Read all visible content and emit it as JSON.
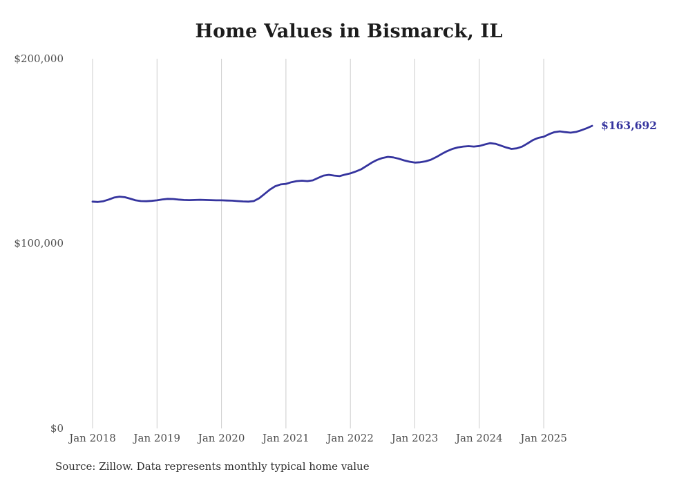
{
  "title": "Home Values in Bismarck, IL",
  "footer": {
    "source": "Source: Zillow. Data represents monthly typical home value"
  },
  "chart_data": {
    "type": "line",
    "title": "Home Values in Bismarck, IL",
    "series_name": "Typical home value",
    "x_start": "2018-01",
    "x_end": "2025-10",
    "x_frequency": "monthly",
    "x_tick_labels": [
      "Jan 2018",
      "Jan 2019",
      "Jan 2020",
      "Jan 2021",
      "Jan 2022",
      "Jan 2023",
      "Jan 2024",
      "Jan 2025"
    ],
    "y_tick_labels": [
      "$0",
      "$100,000",
      "$200,000"
    ],
    "ylim": [
      0,
      200000
    ],
    "grid": "vertical-only",
    "grid_color": "#cccccc",
    "line_color": "#35349e",
    "end_label": "$163,692",
    "end_value": 163692,
    "values": [
      122700,
      122500,
      122900,
      123800,
      124900,
      125400,
      125100,
      124300,
      123400,
      123000,
      122900,
      123100,
      123400,
      123900,
      124200,
      124100,
      123800,
      123600,
      123500,
      123600,
      123700,
      123600,
      123500,
      123400,
      123400,
      123300,
      123200,
      123000,
      122800,
      122700,
      123000,
      124500,
      126800,
      129200,
      131000,
      132000,
      132300,
      133200,
      133800,
      134000,
      133800,
      134200,
      135500,
      136800,
      137200,
      136800,
      136500,
      137300,
      138000,
      139000,
      140200,
      142000,
      143800,
      145300,
      146300,
      146900,
      146600,
      145900,
      145000,
      144300,
      143800,
      144000,
      144500,
      145400,
      146800,
      148500,
      150000,
      151200,
      152000,
      152500,
      152700,
      152500,
      152800,
      153600,
      154300,
      154000,
      153000,
      152000,
      151200,
      151500,
      152500,
      154200,
      156000,
      157200,
      157800,
      159200,
      160300,
      160700,
      160300,
      160000,
      160400,
      161300,
      162400,
      163692
    ]
  }
}
